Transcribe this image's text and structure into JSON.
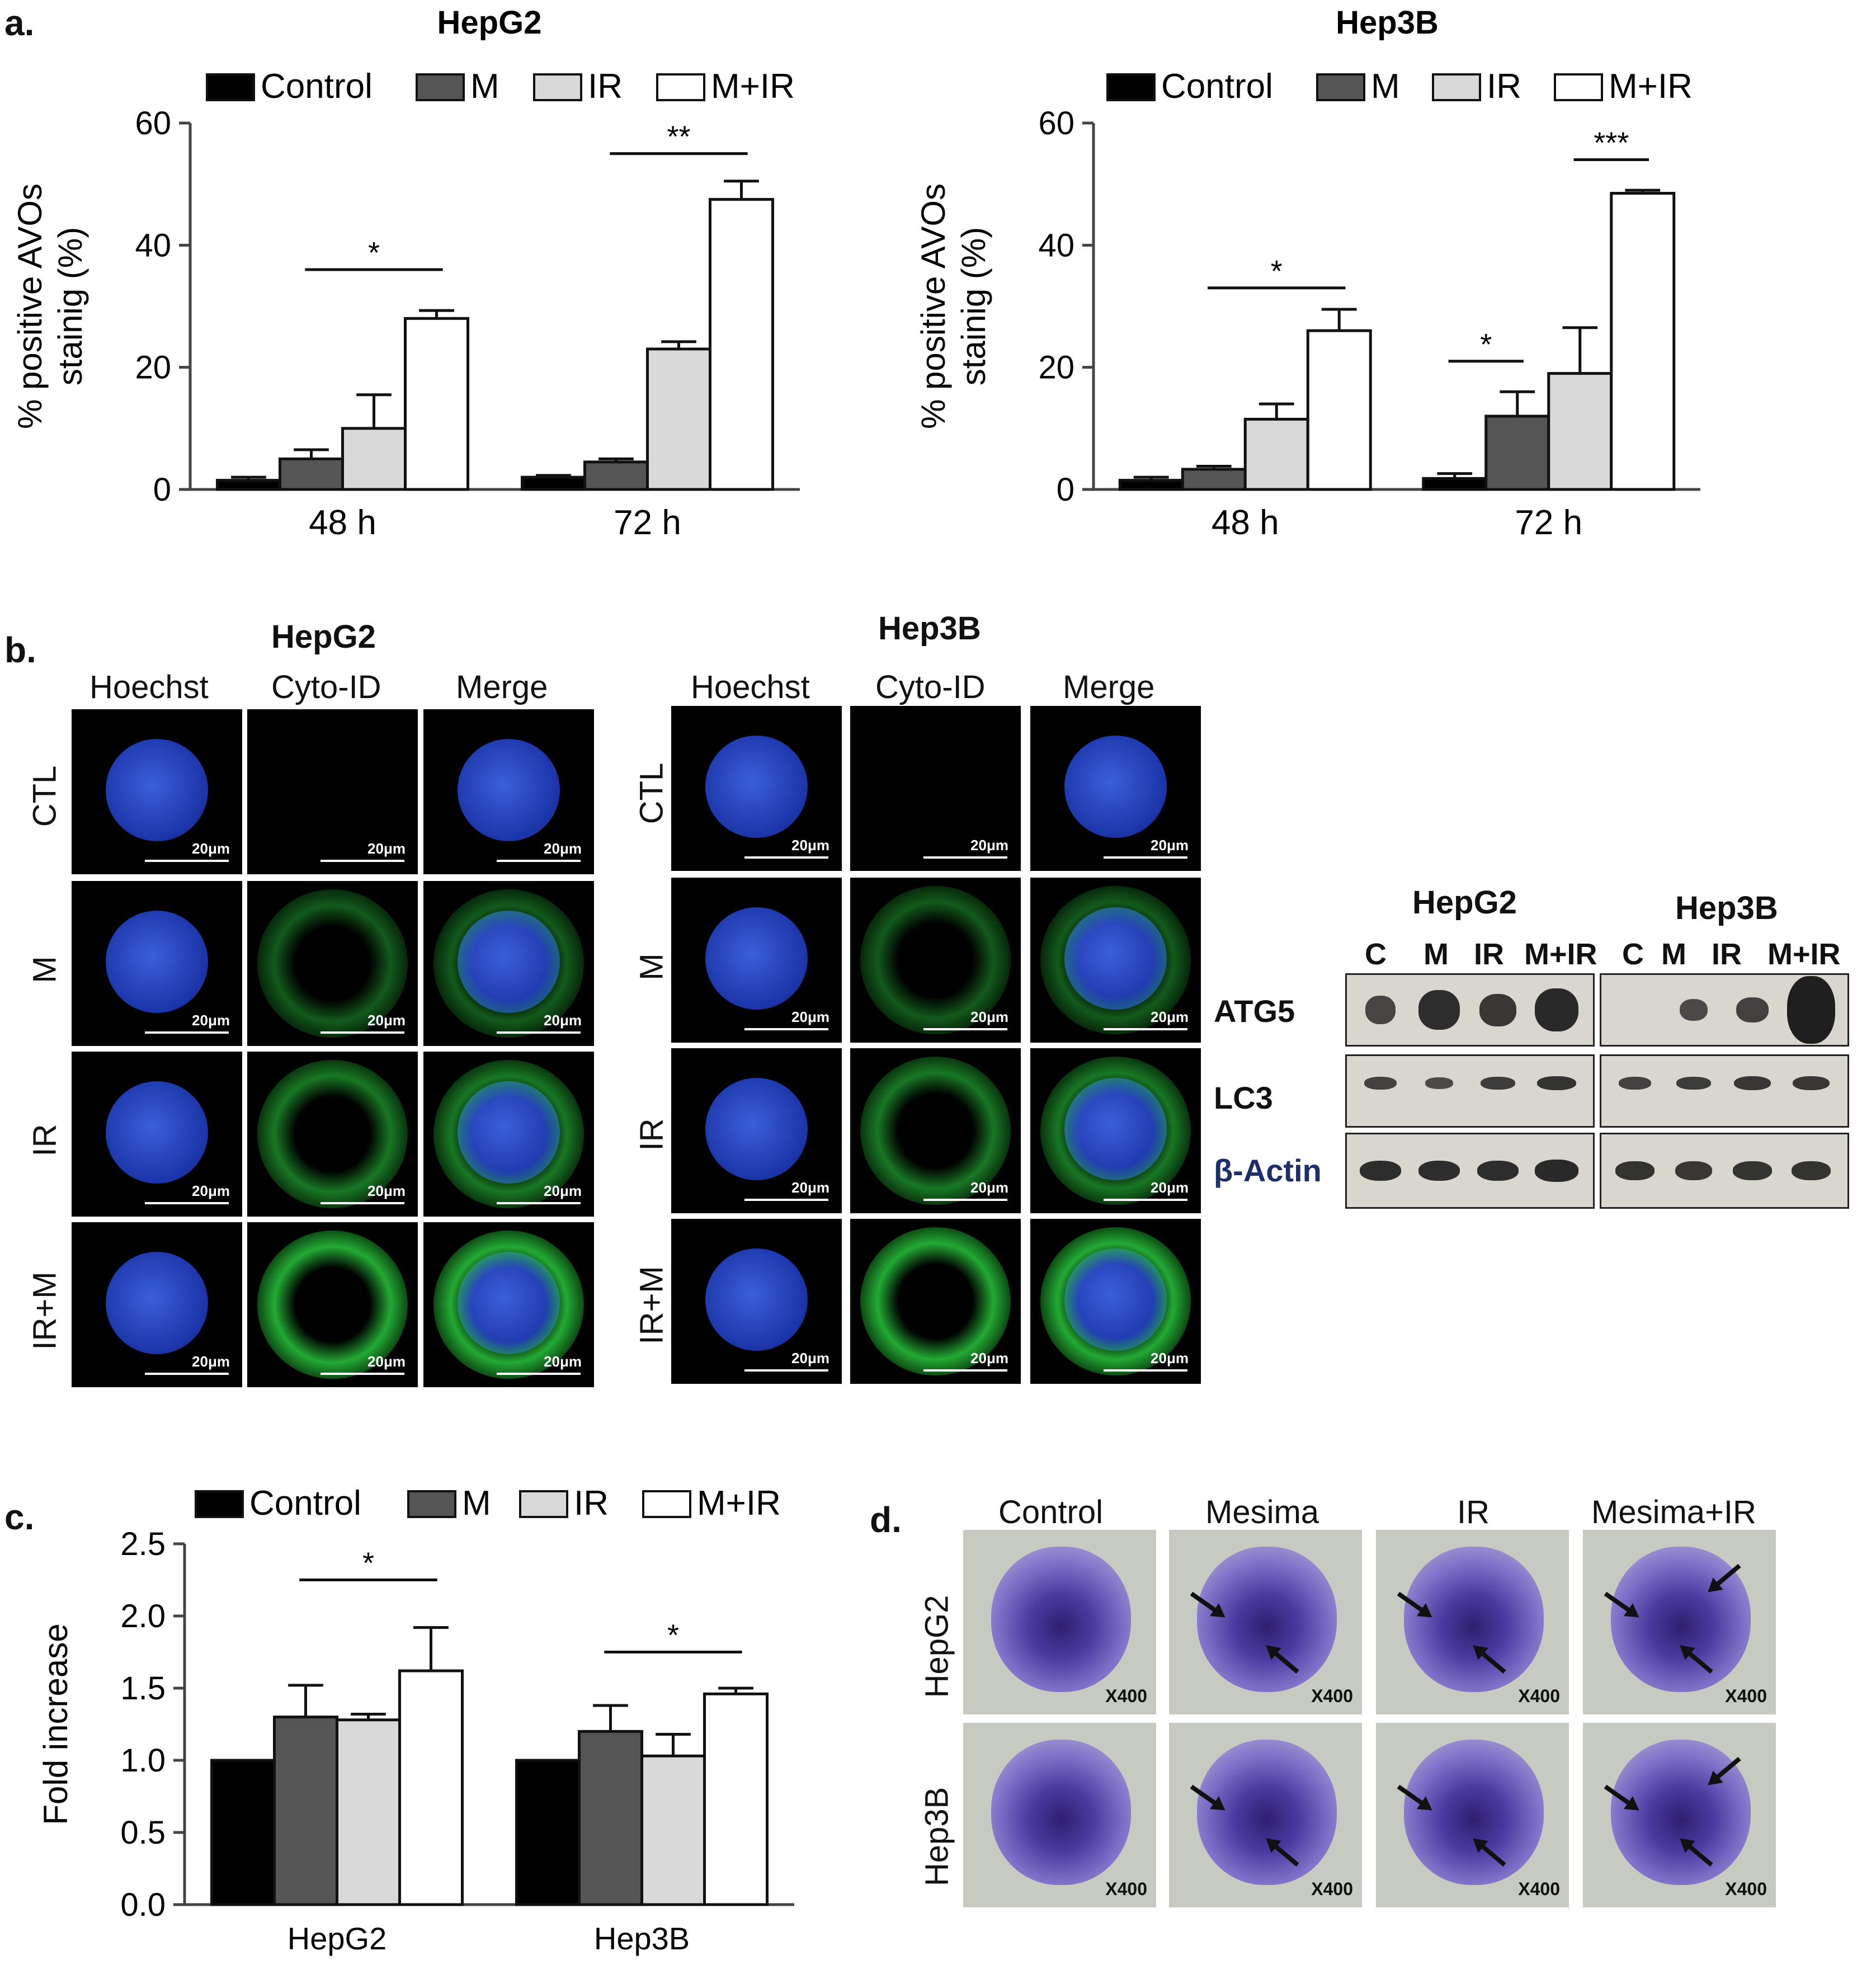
{
  "panels": {
    "a_letter": "a.",
    "b_letter": "b.",
    "c_letter": "c.",
    "d_letter": "d."
  },
  "legend": [
    "Control",
    "M",
    "IR",
    "M+IR"
  ],
  "colors": {
    "control": "#000000",
    "m": "#555555",
    "ir": "#d9d9d9",
    "mir": "#ffffff"
  },
  "chart_data": [
    {
      "type": "bar",
      "title": "HepG2",
      "ylabel": "% positive AVOs staining (%)",
      "ylabel_lines": [
        "% positive AVOs",
        "stainig (%)"
      ],
      "categories": [
        "48 h",
        "72 h"
      ],
      "ylim": [
        0,
        60
      ],
      "yticks": [
        "0",
        "20",
        "40",
        "60"
      ],
      "series": [
        {
          "name": "Control",
          "values": [
            1.5,
            2.0
          ],
          "errors": [
            0.5,
            0.3
          ]
        },
        {
          "name": "M",
          "values": [
            5.0,
            4.5
          ],
          "errors": [
            1.5,
            0.5
          ]
        },
        {
          "name": "IR",
          "values": [
            10.0,
            23.0
          ],
          "errors": [
            5.5,
            1.2
          ]
        },
        {
          "name": "M+IR",
          "values": [
            28.0,
            47.5
          ],
          "errors": [
            1.3,
            3.0
          ]
        }
      ],
      "annotations": [
        {
          "text": "*",
          "group": 0,
          "from": 1,
          "to": 3,
          "y": 36
        },
        {
          "text": "**",
          "group": 1,
          "from": 1,
          "to": 3,
          "y": 55
        }
      ]
    },
    {
      "type": "bar",
      "title": "Hep3B",
      "ylabel": "% positive AVOs staining (%)",
      "ylabel_lines": [
        "% positive AVOs",
        "stainig (%)"
      ],
      "categories": [
        "48 h",
        "72 h"
      ],
      "ylim": [
        0,
        60
      ],
      "yticks": [
        "0",
        "20",
        "40",
        "60"
      ],
      "series": [
        {
          "name": "Control",
          "values": [
            1.5,
            1.8
          ],
          "errors": [
            0.5,
            0.8
          ]
        },
        {
          "name": "M",
          "values": [
            3.3,
            12.0
          ],
          "errors": [
            0.5,
            4.0
          ]
        },
        {
          "name": "IR",
          "values": [
            11.5,
            19.0
          ],
          "errors": [
            2.5,
            7.5
          ]
        },
        {
          "name": "M+IR",
          "values": [
            26.0,
            48.5
          ],
          "errors": [
            3.5,
            0.5
          ]
        }
      ],
      "annotations": [
        {
          "text": "*",
          "group": 0,
          "from": 1,
          "to": 3,
          "y": 33
        },
        {
          "text": "*",
          "group": 1,
          "from": 0,
          "to": 1,
          "y": 21
        },
        {
          "text": "***",
          "group": 1,
          "from": 2,
          "to": 3,
          "y": 54
        }
      ]
    },
    {
      "type": "bar",
      "title": "",
      "ylabel": "Fold increase",
      "ylabel_lines": [
        "Fold increase"
      ],
      "categories": [
        "HepG2",
        "Hep3B"
      ],
      "ylim": [
        0,
        2.5
      ],
      "yticks": [
        "0.0",
        "0.5",
        "1.0",
        "1.5",
        "2.0",
        "2.5"
      ],
      "series": [
        {
          "name": "Control",
          "values": [
            1.0,
            1.0
          ],
          "errors": [
            0,
            0
          ]
        },
        {
          "name": "M",
          "values": [
            1.3,
            1.2
          ],
          "errors": [
            0.22,
            0.18
          ]
        },
        {
          "name": "IR",
          "values": [
            1.28,
            1.03
          ],
          "errors": [
            0.04,
            0.15
          ]
        },
        {
          "name": "M+IR",
          "values": [
            1.62,
            1.46
          ],
          "errors": [
            0.3,
            0.04
          ]
        }
      ],
      "annotations": [
        {
          "text": "*",
          "group": 0,
          "from": 1,
          "to": 3,
          "y": 2.25
        },
        {
          "text": "*",
          "group": 1,
          "from": 1,
          "to": 3,
          "y": 1.75
        }
      ]
    }
  ],
  "panel_b": {
    "hepg2_title": "HepG2",
    "hep3b_title": "Hep3B",
    "columns": [
      "Hoechst",
      "Cyto-ID",
      "Merge"
    ],
    "rows_hepg2": [
      "CTL",
      "M",
      "IR",
      "IR+M"
    ],
    "rows_hep3b": [
      "CTL",
      "M",
      "IR",
      "IR+M"
    ],
    "scale": "20μm"
  },
  "blot": {
    "hepg2": "HepG2",
    "hep3b": "Hep3B",
    "lanes": [
      "C",
      "M",
      "IR",
      "M+IR"
    ],
    "rows": [
      "ATG5",
      "LC3",
      "β-Actin"
    ]
  },
  "panel_d": {
    "columns": [
      "Control",
      "Mesima",
      "IR",
      "Mesima+IR"
    ],
    "rows": [
      "HepG2",
      "Hep3B"
    ],
    "magnification": "X400"
  }
}
